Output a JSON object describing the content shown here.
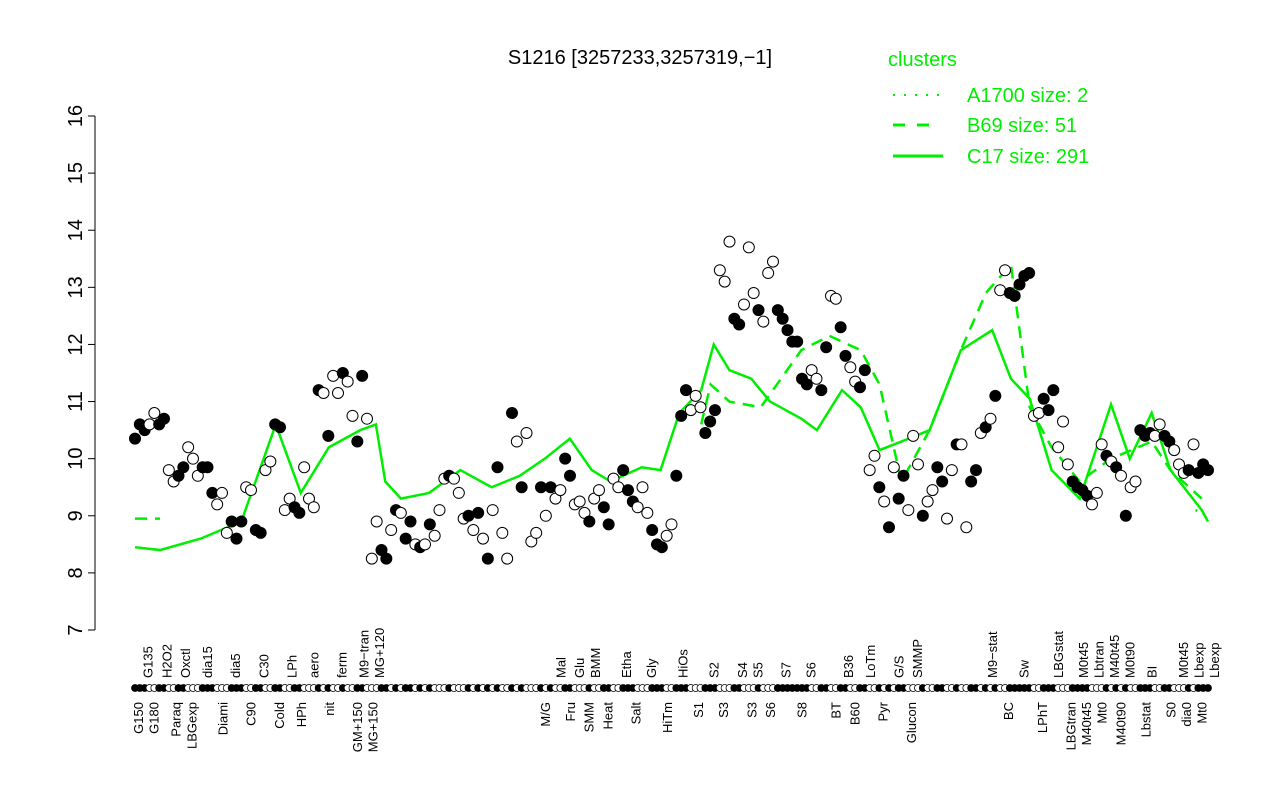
{
  "chart_data": {
    "type": "line",
    "title": "S1216 [3257233,3257319,−1]",
    "xlabel": "",
    "ylabel": "",
    "ylim": [
      7,
      16
    ],
    "yticks": [
      "7",
      "8",
      "9",
      "10",
      "11",
      "12",
      "13",
      "14",
      "15",
      "16"
    ],
    "xlim": [
      1,
      344
    ],
    "grid": false,
    "legend": {
      "title": "clusters",
      "placement": "top-right",
      "color": "#00ee00",
      "items": [
        {
          "label": "A1700 size: 2",
          "style": "dotted"
        },
        {
          "label": "B69 size: 51",
          "style": "dashed"
        },
        {
          "label": "C17 size: 291",
          "style": "solid"
        }
      ]
    },
    "series": [
      {
        "name": "A1700",
        "style": "dotted",
        "color": "#00ee00",
        "segments": [
          [
            [
              340,
              9.1
            ],
            [
              344,
              9.0
            ]
          ]
        ]
      },
      {
        "name": "B69",
        "style": "dashed",
        "color": "#00ee00",
        "segments": [
          [
            [
              1,
              8.95
            ],
            [
              9,
              8.95
            ]
          ],
          [
            [
              182,
              10.6
            ],
            [
              185,
              11.3
            ],
            [
              191,
              11.0
            ],
            [
              201,
              10.9
            ],
            [
              214,
              11.9
            ],
            [
              223,
              12.15
            ],
            [
              233,
              11.9
            ],
            [
              239,
              11.3
            ],
            [
              246,
              9.6
            ],
            [
              255,
              10.5
            ],
            [
              265,
              11.9
            ],
            [
              273,
              12.9
            ],
            [
              281,
              13.4
            ],
            [
              287,
              10.9
            ],
            [
              294,
              10.2
            ],
            [
              303,
              9.6
            ],
            [
              313,
              10.0
            ],
            [
              326,
              10.3
            ],
            [
              332,
              9.8
            ],
            [
              342,
              9.3
            ]
          ]
        ]
      },
      {
        "name": "C17",
        "style": "solid",
        "color": "#00ee00",
        "segments": [
          [
            [
              1,
              8.45
            ],
            [
              9,
              8.4
            ],
            [
              22,
              8.6
            ],
            [
              35,
              8.9
            ],
            [
              46,
              10.6
            ],
            [
              54,
              9.4
            ],
            [
              63,
              10.2
            ],
            [
              73,
              10.5
            ],
            [
              78,
              10.6
            ],
            [
              81,
              9.6
            ],
            [
              86,
              9.3
            ],
            [
              95,
              9.4
            ],
            [
              105,
              9.8
            ],
            [
              115,
              9.5
            ],
            [
              124,
              9.7
            ],
            [
              132,
              10.0
            ],
            [
              140,
              10.35
            ],
            [
              147,
              9.8
            ],
            [
              153,
              9.6
            ],
            [
              163,
              9.85
            ],
            [
              169,
              9.8
            ],
            [
              175,
              10.8
            ],
            [
              182,
              11.2
            ],
            [
              186,
              12.0
            ],
            [
              191,
              11.55
            ],
            [
              198,
              11.4
            ],
            [
              204,
              11.0
            ],
            [
              214,
              10.7
            ],
            [
              219,
              10.5
            ],
            [
              227,
              11.2
            ],
            [
              233,
              10.9
            ],
            [
              239,
              10.15
            ],
            [
              246,
              10.3
            ],
            [
              255,
              10.5
            ],
            [
              265,
              11.9
            ],
            [
              275,
              12.25
            ],
            [
              281,
              11.4
            ],
            [
              287,
              11.05
            ],
            [
              294,
              9.8
            ],
            [
              303,
              9.3
            ],
            [
              313,
              10.95
            ],
            [
              319,
              10.0
            ],
            [
              326,
              10.8
            ],
            [
              332,
              9.8
            ],
            [
              342,
              9.1
            ],
            [
              344,
              8.9
            ]
          ]
        ]
      }
    ],
    "points": [
      [
        10.35,
        1
      ],
      [
        10.6,
        1
      ],
      [
        10.5,
        1
      ],
      [
        10.6,
        0
      ],
      [
        10.8,
        0
      ],
      [
        10.6,
        1
      ],
      [
        10.7,
        1
      ],
      [
        9.8,
        0
      ],
      [
        9.6,
        0
      ],
      [
        9.7,
        1
      ],
      [
        9.85,
        1
      ],
      [
        10.2,
        0
      ],
      [
        10.0,
        0
      ],
      [
        9.7,
        0
      ],
      [
        9.85,
        1
      ],
      [
        9.85,
        1
      ],
      [
        9.4,
        1
      ],
      [
        9.2,
        0
      ],
      [
        9.4,
        0
      ],
      [
        8.7,
        0
      ],
      [
        8.9,
        1
      ],
      [
        8.6,
        1
      ],
      [
        8.9,
        1
      ],
      [
        9.5,
        0
      ],
      [
        9.45,
        0
      ],
      [
        8.75,
        1
      ],
      [
        8.7,
        1
      ],
      [
        9.8,
        0
      ],
      [
        9.95,
        0
      ],
      [
        10.6,
        1
      ],
      [
        10.55,
        1
      ],
      [
        9.1,
        0
      ],
      [
        9.3,
        0
      ],
      [
        9.15,
        1
      ],
      [
        9.05,
        1
      ],
      [
        9.85,
        0
      ],
      [
        9.3,
        0
      ],
      [
        9.15,
        0
      ],
      [
        11.2,
        1
      ],
      [
        11.15,
        0
      ],
      [
        10.4,
        1
      ],
      [
        11.45,
        0
      ],
      [
        11.15,
        0
      ],
      [
        11.5,
        1
      ],
      [
        11.35,
        0
      ],
      [
        10.75,
        0
      ],
      [
        10.3,
        1
      ],
      [
        11.45,
        1
      ],
      [
        10.7,
        0
      ],
      [
        8.25,
        0
      ],
      [
        8.9,
        0
      ],
      [
        8.4,
        1
      ],
      [
        8.25,
        1
      ],
      [
        8.75,
        0
      ],
      [
        9.1,
        1
      ],
      [
        9.05,
        0
      ],
      [
        8.6,
        1
      ],
      [
        8.9,
        1
      ],
      [
        8.5,
        0
      ],
      [
        8.45,
        1
      ],
      [
        8.5,
        0
      ],
      [
        8.85,
        1
      ],
      [
        8.65,
        0
      ],
      [
        9.1,
        0
      ],
      [
        9.65,
        0
      ],
      [
        9.7,
        1
      ],
      [
        9.65,
        0
      ],
      [
        9.4,
        0
      ],
      [
        8.95,
        0
      ],
      [
        9.0,
        1
      ],
      [
        8.75,
        0
      ],
      [
        9.05,
        1
      ],
      [
        8.6,
        0
      ],
      [
        8.25,
        1
      ],
      [
        9.1,
        0
      ],
      [
        9.85,
        1
      ],
      [
        8.7,
        0
      ],
      [
        8.25,
        0
      ],
      [
        10.8,
        1
      ],
      [
        10.3,
        0
      ],
      [
        9.5,
        1
      ],
      [
        10.45,
        0
      ],
      [
        8.55,
        0
      ],
      [
        8.7,
        0
      ],
      [
        9.5,
        1
      ],
      [
        9.0,
        0
      ],
      [
        9.5,
        1
      ],
      [
        9.3,
        0
      ],
      [
        9.45,
        0
      ],
      [
        10.0,
        1
      ],
      [
        9.7,
        1
      ],
      [
        9.2,
        0
      ],
      [
        9.25,
        0
      ],
      [
        9.05,
        0
      ],
      [
        8.9,
        1
      ],
      [
        9.3,
        0
      ],
      [
        9.45,
        0
      ],
      [
        9.15,
        1
      ],
      [
        8.85,
        1
      ],
      [
        9.65,
        0
      ],
      [
        9.5,
        0
      ],
      [
        9.8,
        1
      ],
      [
        9.45,
        1
      ],
      [
        9.25,
        1
      ],
      [
        9.15,
        0
      ],
      [
        9.5,
        0
      ],
      [
        9.05,
        0
      ],
      [
        8.75,
        1
      ],
      [
        8.5,
        1
      ],
      [
        8.45,
        1
      ],
      [
        8.65,
        0
      ],
      [
        8.85,
        0
      ],
      [
        9.7,
        1
      ],
      [
        10.75,
        1
      ],
      [
        11.2,
        1
      ],
      [
        10.85,
        0
      ],
      [
        11.1,
        0
      ],
      [
        10.9,
        0
      ],
      [
        10.45,
        1
      ],
      [
        10.65,
        1
      ],
      [
        10.85,
        1
      ],
      [
        13.3,
        0
      ],
      [
        13.1,
        0
      ],
      [
        13.8,
        0
      ],
      [
        12.45,
        1
      ],
      [
        12.35,
        1
      ],
      [
        12.7,
        0
      ],
      [
        13.7,
        0
      ],
      [
        12.9,
        0
      ],
      [
        12.6,
        1
      ],
      [
        12.4,
        0
      ],
      [
        13.25,
        0
      ],
      [
        13.45,
        0
      ],
      [
        12.6,
        1
      ],
      [
        12.45,
        1
      ],
      [
        12.25,
        1
      ],
      [
        12.05,
        1
      ],
      [
        12.05,
        1
      ],
      [
        11.4,
        1
      ],
      [
        11.3,
        1
      ],
      [
        11.55,
        0
      ],
      [
        11.4,
        0
      ],
      [
        11.2,
        1
      ],
      [
        11.95,
        1
      ],
      [
        12.85,
        0
      ],
      [
        12.8,
        0
      ],
      [
        12.3,
        1
      ],
      [
        11.8,
        1
      ],
      [
        11.6,
        0
      ],
      [
        11.35,
        0
      ],
      [
        11.25,
        1
      ],
      [
        11.55,
        1
      ],
      [
        9.8,
        0
      ],
      [
        10.05,
        0
      ],
      [
        9.5,
        1
      ],
      [
        9.25,
        0
      ],
      [
        8.8,
        1
      ],
      [
        9.85,
        0
      ],
      [
        9.3,
        1
      ],
      [
        9.7,
        1
      ],
      [
        9.1,
        0
      ],
      [
        10.4,
        0
      ],
      [
        9.9,
        0
      ],
      [
        9.0,
        1
      ],
      [
        9.25,
        0
      ],
      [
        9.45,
        0
      ],
      [
        9.85,
        1
      ],
      [
        9.6,
        1
      ],
      [
        8.95,
        0
      ],
      [
        9.8,
        0
      ],
      [
        10.25,
        1
      ],
      [
        10.25,
        0
      ],
      [
        8.8,
        0
      ],
      [
        9.6,
        1
      ],
      [
        9.8,
        1
      ],
      [
        10.45,
        0
      ],
      [
        10.55,
        1
      ],
      [
        10.7,
        0
      ],
      [
        11.1,
        1
      ],
      [
        12.95,
        0
      ],
      [
        13.3,
        0
      ],
      [
        12.9,
        1
      ],
      [
        12.85,
        1
      ],
      [
        13.05,
        1
      ],
      [
        13.2,
        1
      ],
      [
        13.25,
        1
      ],
      [
        10.75,
        0
      ],
      [
        10.8,
        0
      ],
      [
        11.05,
        1
      ],
      [
        10.85,
        1
      ],
      [
        11.2,
        1
      ],
      [
        10.2,
        0
      ],
      [
        10.65,
        0
      ],
      [
        9.9,
        0
      ],
      [
        9.6,
        1
      ],
      [
        9.5,
        1
      ],
      [
        9.45,
        1
      ],
      [
        9.35,
        1
      ],
      [
        9.2,
        0
      ],
      [
        9.4,
        0
      ],
      [
        10.25,
        0
      ],
      [
        10.05,
        1
      ],
      [
        9.95,
        0
      ],
      [
        9.85,
        1
      ],
      [
        9.7,
        0
      ],
      [
        9.0,
        1
      ],
      [
        9.5,
        0
      ],
      [
        9.6,
        0
      ],
      [
        10.5,
        1
      ],
      [
        10.4,
        1
      ],
      [
        10.45,
        1
      ],
      [
        10.4,
        0
      ],
      [
        10.6,
        0
      ],
      [
        10.4,
        1
      ],
      [
        10.3,
        1
      ],
      [
        10.15,
        0
      ],
      [
        9.9,
        0
      ],
      [
        9.75,
        0
      ],
      [
        9.8,
        1
      ],
      [
        10.25,
        0
      ],
      [
        9.75,
        1
      ],
      [
        9.9,
        1
      ],
      [
        9.8,
        1
      ]
    ],
    "xlabels_lower": [
      {
        "t": "G150",
        "at": 2
      },
      {
        "t": "G180",
        "at": 5
      },
      {
        "t": "Paraq",
        "at": 14
      },
      {
        "t": "LBGexp",
        "at": 19
      },
      {
        "t": "Diami",
        "at": 29
      },
      {
        "t": "C90",
        "at": 38
      },
      {
        "t": "Cold",
        "at": 47
      },
      {
        "t": "HPh",
        "at": 54
      },
      {
        "t": "nit",
        "at": 63
      },
      {
        "t": "GM+150",
        "at": 72
      },
      {
        "t": "MG+150",
        "at": 77
      },
      {
        "t": "M/G",
        "at": 132
      },
      {
        "t": "Fru",
        "at": 140
      },
      {
        "t": "SMM",
        "at": 146
      },
      {
        "t": "Heat",
        "at": 152
      },
      {
        "t": "Salt",
        "at": 161
      },
      {
        "t": "HiTm",
        "at": 171
      },
      {
        "t": "S1",
        "at": 181
      },
      {
        "t": "S3",
        "at": 189
      },
      {
        "t": "S3",
        "at": 198
      },
      {
        "t": "S6",
        "at": 204
      },
      {
        "t": "S8",
        "at": 214
      },
      {
        "t": "BT",
        "at": 225
      },
      {
        "t": "B60",
        "at": 231
      },
      {
        "t": "Pyr",
        "at": 240
      },
      {
        "t": "Glucon",
        "at": 249
      },
      {
        "t": "BC",
        "at": 280
      },
      {
        "t": "LPhT",
        "at": 291
      },
      {
        "t": "LBGtran",
        "at": 300
      },
      {
        "t": "M40t45",
        "at": 305
      },
      {
        "t": "Mt0",
        "at": 310
      },
      {
        "t": "M40t90",
        "at": 316
      },
      {
        "t": "Lbstat",
        "at": 324
      },
      {
        "t": "S0",
        "at": 332
      },
      {
        "t": "dia0",
        "at": 337
      },
      {
        "t": "Mt0",
        "at": 342
      }
    ],
    "xlabels_upper": [
      {
        "t": "G135",
        "at": 5
      },
      {
        "t": "H2O2",
        "at": 11
      },
      {
        "t": "Oxctl",
        "at": 17
      },
      {
        "t": "dia15",
        "at": 24
      },
      {
        "t": "dia5",
        "at": 33
      },
      {
        "t": "C30",
        "at": 42
      },
      {
        "t": "LPh",
        "at": 51
      },
      {
        "t": "aero",
        "at": 58
      },
      {
        "t": "ferm",
        "at": 67
      },
      {
        "t": "M9−tran",
        "at": 74
      },
      {
        "t": "MG+120",
        "at": 79
      },
      {
        "t": "Mal",
        "at": 137
      },
      {
        "t": "Glu",
        "at": 143
      },
      {
        "t": "BMM",
        "at": 148
      },
      {
        "t": "Etha",
        "at": 158
      },
      {
        "t": "Gly",
        "at": 166
      },
      {
        "t": "HiOs",
        "at": 176
      },
      {
        "t": "S2",
        "at": 186
      },
      {
        "t": "S4",
        "at": 195
      },
      {
        "t": "S5",
        "at": 200
      },
      {
        "t": "S7",
        "at": 209
      },
      {
        "t": "S6",
        "at": 217
      },
      {
        "t": "B36",
        "at": 229
      },
      {
        "t": "LoTm",
        "at": 236
      },
      {
        "t": "G/S",
        "at": 245
      },
      {
        "t": "SMMP",
        "at": 251
      },
      {
        "t": "M9−stat",
        "at": 275
      },
      {
        "t": "Sw",
        "at": 285
      },
      {
        "t": "LBGstat",
        "at": 296
      },
      {
        "t": "M0t45",
        "at": 304
      },
      {
        "t": "Lbtran",
        "at": 308
      },
      {
        "t": "M40t45",
        "at": 310
      },
      {
        "t": "M0t90",
        "at": 317
      },
      {
        "t": "BI",
        "at": 326
      },
      {
        "t": "M0t45",
        "at": 336
      },
      {
        "t": "Lbexp",
        "at": 340
      },
      {
        "t": "Lbexp",
        "at": 342
      }
    ]
  }
}
